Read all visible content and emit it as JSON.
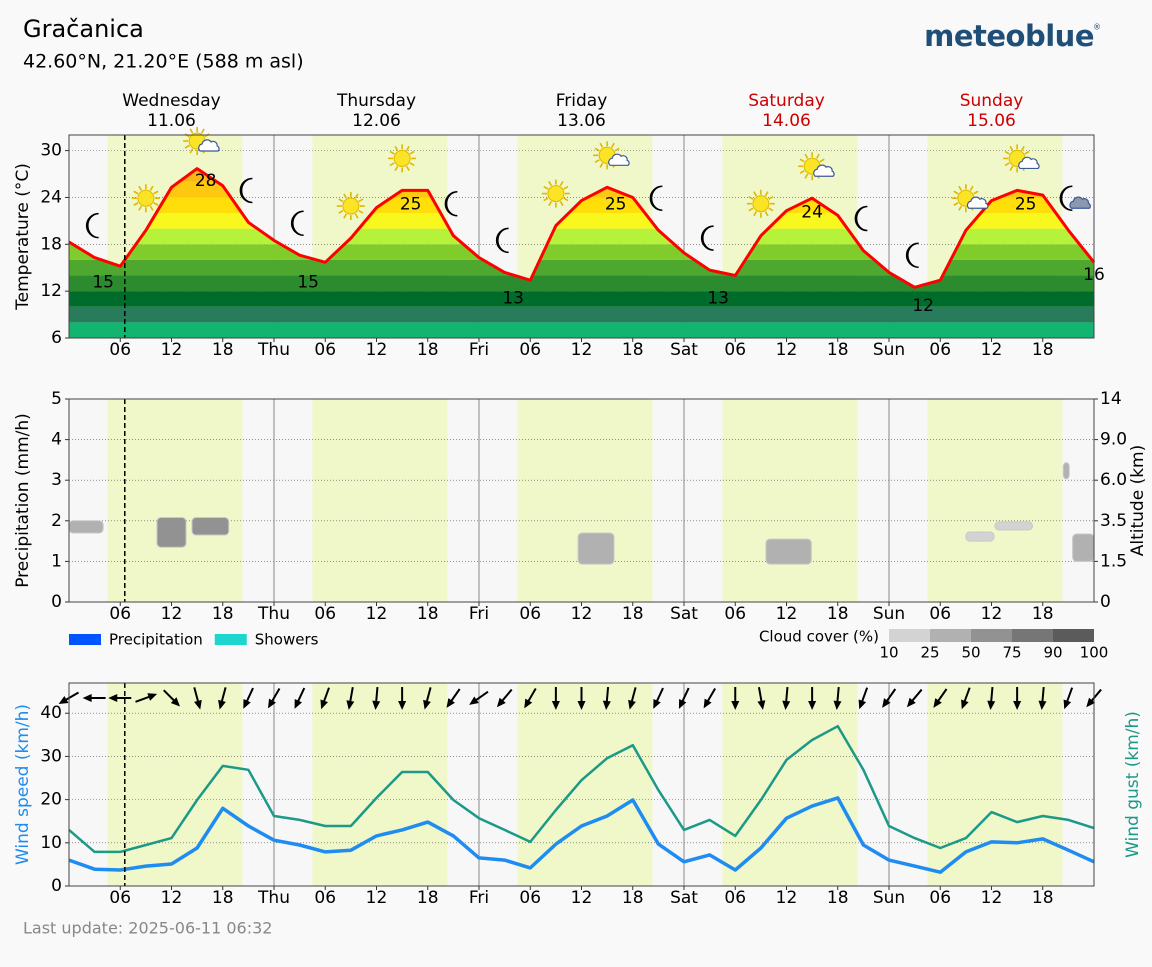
{
  "header": {
    "location": "Gračanica",
    "coordinates": "42.60°N, 21.20°E (588 m asl)",
    "logo": "meteoblue",
    "logo_mark": "®"
  },
  "footer": {
    "last_update": "Last update: 2025-06-11 06:32"
  },
  "chart_data": [
    {
      "type": "line",
      "y_label": "Temperature (°C)",
      "color": "#ff0000",
      "x": [
        0,
        3,
        6,
        9,
        12,
        15,
        18,
        21,
        24,
        27,
        30,
        33,
        36,
        39,
        42,
        45,
        48,
        51,
        54,
        57,
        60,
        63,
        66,
        69,
        72,
        75,
        78,
        81,
        84,
        87,
        90,
        93,
        96,
        99,
        102,
        105,
        108,
        111,
        114,
        117,
        120
      ],
      "values": [
        18.3,
        16.3,
        15.2,
        19.8,
        25.3,
        27.7,
        25.5,
        20.8,
        18.5,
        16.6,
        15.7,
        18.8,
        22.7,
        24.9,
        24.9,
        19.1,
        16.3,
        14.4,
        13.4,
        20.4,
        23.6,
        25.3,
        24.0,
        19.8,
        16.9,
        14.7,
        14.0,
        19.1,
        22.3,
        23.9,
        21.7,
        17.2,
        14.4,
        12.5,
        13.4,
        19.8,
        23.6,
        24.9,
        24.3,
        19.8,
        15.7
      ],
      "xlim": [
        0,
        120
      ],
      "xticks": [
        {
          "value": 6,
          "label": "06"
        },
        {
          "value": 12,
          "label": "12"
        },
        {
          "value": 18,
          "label": "18"
        },
        {
          "value": 24,
          "label": "Thu"
        },
        {
          "value": 30,
          "label": "06"
        },
        {
          "value": 36,
          "label": "12"
        },
        {
          "value": 42,
          "label": "18"
        },
        {
          "value": 48,
          "label": "Fri"
        },
        {
          "value": 54,
          "label": "06"
        },
        {
          "value": 60,
          "label": "12"
        },
        {
          "value": 66,
          "label": "18"
        },
        {
          "value": 72,
          "label": "Sat"
        },
        {
          "value": 78,
          "label": "06"
        },
        {
          "value": 84,
          "label": "12"
        },
        {
          "value": 90,
          "label": "18"
        },
        {
          "value": 96,
          "label": "Sun"
        },
        {
          "value": 102,
          "label": "06"
        },
        {
          "value": 108,
          "label": "12"
        },
        {
          "value": 114,
          "label": "18"
        }
      ],
      "ylim": [
        6,
        32
      ],
      "yticks": [
        6,
        12,
        18,
        24,
        30
      ],
      "grid": true,
      "now": 6.53,
      "daylight": [
        [
          4.5,
          20.3
        ],
        [
          28.5,
          44.3
        ],
        [
          52.5,
          68.3
        ],
        [
          76.5,
          92.3
        ],
        [
          100.5,
          116.3
        ]
      ],
      "day_headers": [
        {
          "day": "Wednesday",
          "date": "11.06",
          "x": 12,
          "color": "#000000"
        },
        {
          "day": "Thursday",
          "date": "12.06",
          "x": 36,
          "color": "#000000"
        },
        {
          "day": "Friday",
          "date": "13.06",
          "x": 60,
          "color": "#000000"
        },
        {
          "day": "Saturday",
          "date": "14.06",
          "x": 84,
          "color": "#cc0000"
        },
        {
          "day": "Sunday",
          "date": "15.06",
          "x": 108,
          "color": "#cc0000"
        }
      ],
      "extremes": [
        {
          "x": 4,
          "value": 15
        },
        {
          "x": 16,
          "value": 28
        },
        {
          "x": 28,
          "value": 15
        },
        {
          "x": 40,
          "value": 25
        },
        {
          "x": 52,
          "value": 13
        },
        {
          "x": 64,
          "value": 25
        },
        {
          "x": 76,
          "value": 13
        },
        {
          "x": 87,
          "value": 24
        },
        {
          "x": 100,
          "value": 12
        },
        {
          "x": 112,
          "value": 25
        },
        {
          "x": 120,
          "value": 16
        }
      ],
      "color_scale": [
        {
          "from": 6,
          "to": 8,
          "color": "#12b56f"
        },
        {
          "from": 8,
          "to": 10,
          "color": "#287c5c"
        },
        {
          "from": 10,
          "to": 12,
          "color": "#006c2b"
        },
        {
          "from": 12,
          "to": 14,
          "color": "#2d8b2f"
        },
        {
          "from": 14,
          "to": 16,
          "color": "#4ea72e"
        },
        {
          "from": 16,
          "to": 18,
          "color": "#80cc2a"
        },
        {
          "from": 18,
          "to": 20,
          "color": "#b6f23a"
        },
        {
          "from": 20,
          "to": 22,
          "color": "#f8f81e"
        },
        {
          "from": 22,
          "to": 24,
          "color": "#ffde0a"
        },
        {
          "from": 24,
          "to": 26,
          "color": "#fcc811"
        },
        {
          "from": 26,
          "to": 32,
          "color": "#fbb617"
        }
      ],
      "icons": [
        {
          "x": 3,
          "icon": "moon"
        },
        {
          "x": 9,
          "icon": "sun"
        },
        {
          "x": 15,
          "icon": "sun-cloud"
        },
        {
          "x": 21,
          "icon": "moon"
        },
        {
          "x": 27,
          "icon": "moon"
        },
        {
          "x": 33,
          "icon": "sun"
        },
        {
          "x": 39,
          "icon": "sun"
        },
        {
          "x": 45,
          "icon": "moon"
        },
        {
          "x": 51,
          "icon": "moon"
        },
        {
          "x": 57,
          "icon": "sun"
        },
        {
          "x": 63,
          "icon": "sun-cloud"
        },
        {
          "x": 69,
          "icon": "moon"
        },
        {
          "x": 75,
          "icon": "moon"
        },
        {
          "x": 81,
          "icon": "sun"
        },
        {
          "x": 87,
          "icon": "sun-cloud"
        },
        {
          "x": 93,
          "icon": "moon"
        },
        {
          "x": 99,
          "icon": "moon"
        },
        {
          "x": 105,
          "icon": "sun-cloud"
        },
        {
          "x": 111,
          "icon": "sun-cloud"
        },
        {
          "x": 117,
          "icon": "moon-cloud"
        }
      ]
    },
    {
      "type": "bar",
      "y_label": "Precipitation (mm/h)",
      "y2_label": "Altitude (km)",
      "x": [
        0,
        3,
        6,
        9,
        12,
        15,
        18,
        21,
        24,
        27,
        30,
        33,
        36,
        39,
        42,
        45,
        48,
        51,
        54,
        57,
        60,
        63,
        66,
        69,
        72,
        75,
        78,
        81,
        84,
        87,
        90,
        93,
        96,
        99,
        102,
        105,
        108,
        111,
        114,
        117,
        120
      ],
      "series": [
        {
          "name": "Precipitation",
          "color": "#0055ff",
          "values": [
            0,
            0,
            0,
            0,
            0,
            0,
            0,
            0,
            0,
            0,
            0,
            0,
            0,
            0,
            0,
            0,
            0,
            0,
            0,
            0,
            0,
            0,
            0,
            0,
            0,
            0,
            0,
            0,
            0,
            0,
            0,
            0,
            0,
            0,
            0,
            0,
            0,
            0,
            0,
            0,
            0
          ]
        },
        {
          "name": "Showers",
          "color": "#1ed6cf",
          "values": [
            0,
            0,
            0,
            0,
            0,
            0,
            0,
            0,
            0,
            0,
            0,
            0,
            0,
            0,
            0,
            0,
            0,
            0,
            0,
            0,
            0,
            0,
            0,
            0,
            0,
            0,
            0,
            0,
            0,
            0,
            0,
            0,
            0,
            0,
            0,
            0,
            0,
            0,
            0,
            0,
            0
          ]
        }
      ],
      "xlim": [
        0,
        120
      ],
      "xticks": [
        {
          "value": 6,
          "label": "06"
        },
        {
          "value": 12,
          "label": "12"
        },
        {
          "value": 18,
          "label": "18"
        },
        {
          "value": 24,
          "label": "Thu"
        },
        {
          "value": 30,
          "label": "06"
        },
        {
          "value": 36,
          "label": "12"
        },
        {
          "value": 42,
          "label": "18"
        },
        {
          "value": 48,
          "label": "Fri"
        },
        {
          "value": 54,
          "label": "06"
        },
        {
          "value": 60,
          "label": "12"
        },
        {
          "value": 66,
          "label": "18"
        },
        {
          "value": 72,
          "label": "Sat"
        },
        {
          "value": 78,
          "label": "06"
        },
        {
          "value": 84,
          "label": "12"
        },
        {
          "value": 90,
          "label": "18"
        },
        {
          "value": 96,
          "label": "Sun"
        },
        {
          "value": 102,
          "label": "06"
        },
        {
          "value": 108,
          "label": "12"
        },
        {
          "value": 114,
          "label": "18"
        }
      ],
      "ylim": [
        0,
        5
      ],
      "yticks": [
        0,
        1,
        2,
        3,
        4,
        5
      ],
      "y2lim": [
        0,
        14
      ],
      "y2ticks": [
        0,
        1.5,
        3.5,
        {
          "value": 6,
          "label": "6.0"
        },
        {
          "value": 9,
          "label": "9.0"
        },
        14
      ],
      "y2scale": "piecewise",
      "grid": true,
      "now": 6.53,
      "daylight": [
        [
          4.5,
          20.3
        ],
        [
          28.5,
          44.3
        ],
        [
          52.5,
          68.3
        ],
        [
          76.5,
          92.3
        ],
        [
          100.5,
          116.3
        ]
      ],
      "clouds": [
        {
          "x0": 0,
          "x1": 4,
          "alt0": 2.9,
          "alt1": 3.5,
          "cover": 25
        },
        {
          "x0": 10.3,
          "x1": 13.7,
          "alt0": 2.2,
          "alt1": 3.7,
          "cover": 50
        },
        {
          "x0": 14.4,
          "x1": 18.7,
          "alt0": 2.8,
          "alt1": 3.7,
          "cover": 50
        },
        {
          "x0": 59.6,
          "x1": 63.8,
          "alt0": 1.4,
          "alt1": 2.9,
          "cover": 25
        },
        {
          "x0": 81.6,
          "x1": 86.9,
          "alt0": 1.4,
          "alt1": 2.6,
          "cover": 25
        },
        {
          "x0": 105,
          "x1": 108.3,
          "alt0": 2.5,
          "alt1": 2.95,
          "cover": 10
        },
        {
          "x0": 108.4,
          "x1": 112.8,
          "alt0": 3.05,
          "alt1": 3.45,
          "cover": 10
        },
        {
          "x0": 116.4,
          "x1": 117.1,
          "alt0": 6.1,
          "alt1": 7.3,
          "cover": 25
        },
        {
          "x0": 117.5,
          "x1": 120,
          "alt0": 1.5,
          "alt1": 2.85,
          "cover": 25
        }
      ],
      "cloud_legend": {
        "title": "Cloud cover (%)",
        "levels": [
          10,
          25,
          50,
          75,
          90,
          100
        ],
        "colors": [
          "#d3d3d3",
          "#b1b1b1",
          "#929292",
          "#767676",
          "#5b5b5b"
        ]
      }
    },
    {
      "type": "line",
      "y_label": "Wind speed (km/h)",
      "y2_label": "Wind gust (km/h)",
      "x": [
        0,
        3,
        6,
        9,
        12,
        15,
        18,
        21,
        24,
        27,
        30,
        33,
        36,
        39,
        42,
        45,
        48,
        51,
        54,
        57,
        60,
        63,
        66,
        69,
        72,
        75,
        78,
        81,
        84,
        87,
        90,
        93,
        96,
        99,
        102,
        105,
        108,
        111,
        114,
        117,
        120
      ],
      "series": [
        {
          "color": "#1e8cf0",
          "values": [
            6,
            3.9,
            3.7,
            4.6,
            5.1,
            8.8,
            18,
            13.9,
            10.6,
            9.5,
            7.9,
            8.3,
            11.6,
            13,
            14.8,
            11.6,
            6.5,
            6,
            4.2,
            9.7,
            13.9,
            16.2,
            19.9,
            9.7,
            5.6,
            7.2,
            3.7,
            8.8,
            15.7,
            18.5,
            20.4,
            9.5,
            6,
            4.6,
            3.2,
            7.9,
            10.2,
            10,
            10.9,
            8.3,
            5.6
          ]
        },
        {
          "color": "#1c9987",
          "axis": "y2",
          "values": [
            13,
            7.9,
            7.9,
            9.5,
            11.1,
            19.9,
            27.8,
            26.9,
            16.2,
            15.3,
            13.9,
            13.9,
            20.4,
            26.4,
            26.4,
            19.9,
            15.7,
            13,
            10.2,
            17.6,
            24.5,
            29.6,
            32.6,
            22.2,
            13,
            15.3,
            11.6,
            19.9,
            29.2,
            33.8,
            37,
            26.9,
            13.9,
            11.1,
            8.8,
            11.1,
            17.1,
            14.8,
            16.2,
            15.3,
            13.4
          ]
        }
      ],
      "wind_direction": [
        60,
        90,
        90,
        250,
        315,
        345,
        15,
        25,
        30,
        25,
        20,
        10,
        5,
        0,
        15,
        35,
        55,
        40,
        30,
        0,
        0,
        5,
        15,
        25,
        25,
        30,
        0,
        350,
        5,
        0,
        5,
        20,
        35,
        40,
        35,
        20,
        5,
        0,
        5,
        20,
        40
      ],
      "xlim": [
        0,
        120
      ],
      "xticks": [
        {
          "value": 6,
          "label": "06"
        },
        {
          "value": 12,
          "label": "12"
        },
        {
          "value": 18,
          "label": "18"
        },
        {
          "value": 24,
          "label": "Thu"
        },
        {
          "value": 30,
          "label": "06"
        },
        {
          "value": 36,
          "label": "12"
        },
        {
          "value": 42,
          "label": "18"
        },
        {
          "value": 48,
          "label": "Fri"
        },
        {
          "value": 54,
          "label": "06"
        },
        {
          "value": 60,
          "label": "12"
        },
        {
          "value": 66,
          "label": "18"
        },
        {
          "value": 72,
          "label": "Sat"
        },
        {
          "value": 78,
          "label": "06"
        },
        {
          "value": 84,
          "label": "12"
        },
        {
          "value": 90,
          "label": "18"
        },
        {
          "value": 96,
          "label": "Sun"
        },
        {
          "value": 102,
          "label": "06"
        },
        {
          "value": 108,
          "label": "12"
        },
        {
          "value": 114,
          "label": "18"
        }
      ],
      "ylim": [
        0,
        47
      ],
      "yticks": [
        0,
        10,
        20,
        30,
        40
      ],
      "y2lim": [
        0,
        47
      ],
      "grid": true,
      "now": 6.53,
      "daylight": [
        [
          4.5,
          20.3
        ],
        [
          28.5,
          44.3
        ],
        [
          52.5,
          68.3
        ],
        [
          76.5,
          92.3
        ],
        [
          100.5,
          116.3
        ]
      ]
    }
  ]
}
